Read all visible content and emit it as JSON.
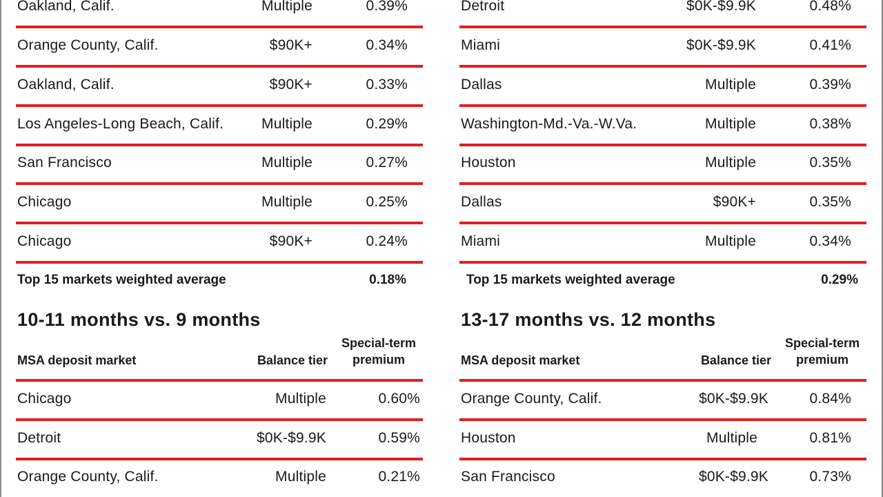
{
  "upper_left": {
    "rows": [
      {
        "market": "Oakland, Calif.",
        "tier": "Multiple",
        "premium": "0.39%"
      },
      {
        "market": "Orange County, Calif.",
        "tier": "$90K+",
        "premium": "0.34%"
      },
      {
        "market": "Oakland, Calif.",
        "tier": "$90K+",
        "premium": "0.33%"
      },
      {
        "market": "Los Angeles-Long Beach, Calif.",
        "tier": "Multiple",
        "premium": "0.29%"
      },
      {
        "market": "San Francisco",
        "tier": "Multiple",
        "premium": "0.27%"
      },
      {
        "market": "Chicago",
        "tier": "Multiple",
        "premium": "0.25%"
      },
      {
        "market": "Chicago",
        "tier": "$90K+",
        "premium": "0.24%"
      }
    ],
    "average_label": "Top 15 markets weighted average",
    "average_value": "0.18%"
  },
  "upper_right": {
    "rows": [
      {
        "market": "Detroit",
        "tier": "$0K-$9.9K",
        "premium": "0.48%"
      },
      {
        "market": "Miami",
        "tier": "$0K-$9.9K",
        "premium": "0.41%"
      },
      {
        "market": "Dallas",
        "tier": "Multiple",
        "premium": "0.39%"
      },
      {
        "market": "Washington-Md.-Va.-W.Va.",
        "tier": "Multiple",
        "premium": "0.38%"
      },
      {
        "market": "Houston",
        "tier": "Multiple",
        "premium": "0.35%"
      },
      {
        "market": "Dallas",
        "tier": "$90K+",
        "premium": "0.35%"
      },
      {
        "market": "Miami",
        "tier": "Multiple",
        "premium": "0.34%"
      }
    ],
    "average_label": "Top 15 markets weighted average",
    "average_value": "0.29%"
  },
  "lower_left": {
    "title": "10-11 months vs. 9 months",
    "headers": {
      "market": "MSA deposit market",
      "tier": "Balance tier",
      "premium_line1": "Special-term",
      "premium_line2": "premium"
    },
    "rows": [
      {
        "market": "Chicago",
        "tier": "Multiple",
        "premium": "0.60%"
      },
      {
        "market": "Detroit",
        "tier": "$0K-$9.9K",
        "premium": "0.59%"
      },
      {
        "market": "Orange County, Calif.",
        "tier": "Multiple",
        "premium": "0.21%"
      }
    ]
  },
  "lower_right": {
    "title": "13-17 months vs. 12 months",
    "headers": {
      "market": "MSA deposit market",
      "tier": "Balance tier",
      "premium_line1": "Special-term",
      "premium_line2": "premium"
    },
    "rows": [
      {
        "market": "Orange County, Calif.",
        "tier": "$0K-$9.9K",
        "premium": "0.84%"
      },
      {
        "market": "Houston",
        "tier": "Multiple",
        "premium": "0.81%"
      },
      {
        "market": "San Francisco",
        "tier": "$0K-$9.9K",
        "premium": "0.73%"
      }
    ]
  },
  "colors": {
    "rule": "#e01f25",
    "text": "#1a1a1a",
    "frame": "#8a8a8a"
  }
}
